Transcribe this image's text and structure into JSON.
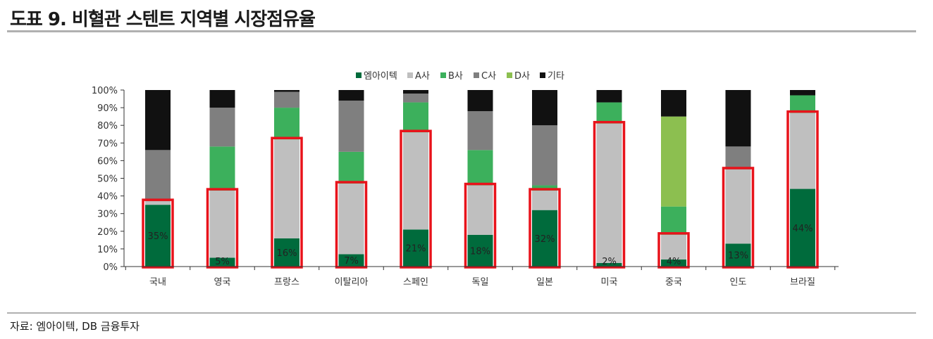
{
  "header": {
    "title": "도표 9. 비혈관 스텐트 지역별 시장점유율"
  },
  "footer": {
    "source": "자료: 엠아이텍, DB 금융투자"
  },
  "chart_data": {
    "type": "bar",
    "stacked": true,
    "categories": [
      "국내",
      "영국",
      "프랑스",
      "이탈리아",
      "스페인",
      "독일",
      "일본",
      "미국",
      "중국",
      "인도",
      "브라질"
    ],
    "ylim": [
      0,
      100
    ],
    "yticks": [
      "0%",
      "10%",
      "20%",
      "30%",
      "40%",
      "50%",
      "60%",
      "70%",
      "80%",
      "90%",
      "100%"
    ],
    "legend_position": "top",
    "series": [
      {
        "name": "엠아이텍",
        "color": "#006b3c",
        "values": [
          35,
          5,
          16,
          7,
          21,
          18,
          32,
          2,
          4,
          13,
          44
        ]
      },
      {
        "name": "A사",
        "color": "#bfbfbf",
        "values": [
          2,
          38,
          56,
          40,
          55,
          28,
          11,
          79,
          14,
          42,
          43
        ]
      },
      {
        "name": "B사",
        "color": "#3cb05c",
        "values": [
          0,
          25,
          18,
          18,
          17,
          20,
          3,
          12,
          16,
          0,
          10
        ]
      },
      {
        "name": "C사",
        "color": "#7f7f7f",
        "values": [
          29,
          22,
          9,
          29,
          5,
          22,
          34,
          0,
          0,
          13,
          0
        ]
      },
      {
        "name": "D사",
        "color": "#8cbf50",
        "values": [
          0,
          0,
          0,
          0,
          0,
          0,
          0,
          0,
          51,
          0,
          0
        ]
      },
      {
        "name": "기타",
        "color": "#111111",
        "values": [
          34,
          10,
          1,
          6,
          2,
          12,
          20,
          7,
          15,
          32,
          3
        ]
      }
    ],
    "data_labels": [
      "35%",
      "5%",
      "16%",
      "7%",
      "21%",
      "18%",
      "32%",
      "2%",
      "4%",
      "13%",
      "44%"
    ],
    "highlight_color": "#e8131b"
  }
}
